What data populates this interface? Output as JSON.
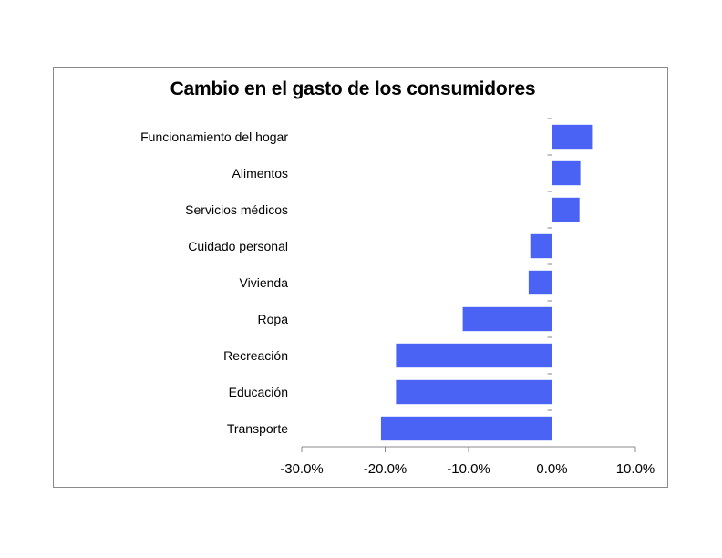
{
  "chart_data": {
    "type": "bar",
    "orientation": "horizontal",
    "title": "Cambio en el gasto de los consumidores",
    "xlabel": "",
    "ylabel": "",
    "categories": [
      "Funcionamiento del hogar",
      "Alimentos",
      "Servicios médicos",
      "Cuidado personal",
      "Vivienda",
      "Ropa",
      "Recreación",
      "Educación",
      "Transporte"
    ],
    "values": [
      4.8,
      3.4,
      3.3,
      -2.6,
      -2.8,
      -10.7,
      -18.7,
      -18.7,
      -20.5
    ],
    "xlim": [
      -30,
      10
    ],
    "xticks": [
      -30,
      -20,
      -10,
      0,
      10
    ],
    "xtick_labels": [
      "-30.0%",
      "-20.0%",
      "-10.0%",
      "0.0%",
      "10.0%"
    ],
    "grid": false,
    "legend": "none",
    "bar_color": "#4A63F5"
  }
}
